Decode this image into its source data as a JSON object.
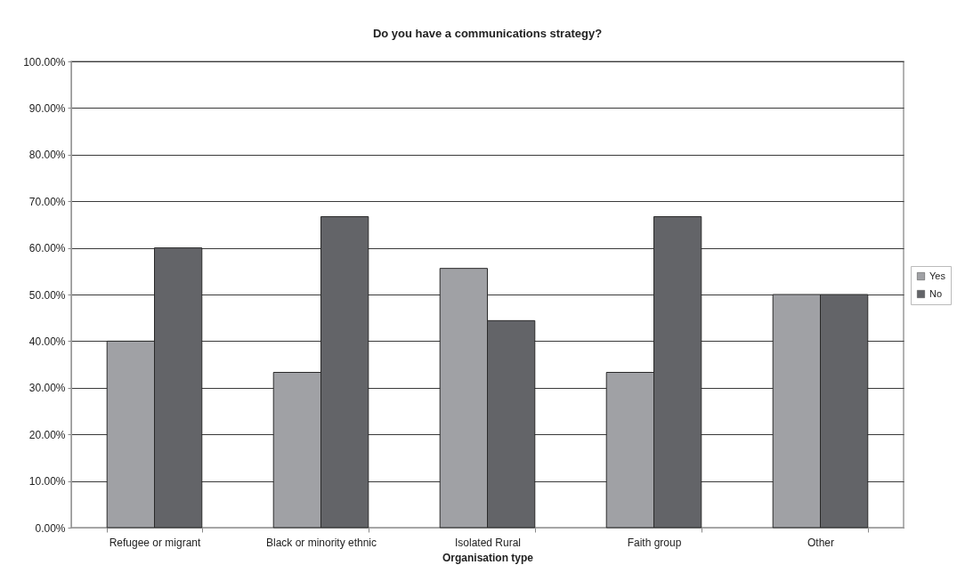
{
  "chart_data": {
    "type": "bar",
    "title": "Do you have a communications strategy?",
    "xlabel": "Organisation type",
    "categories": [
      "Refugee or migrant",
      "Black or minority ethnic",
      "Isolated Rural",
      "Faith group",
      "Other"
    ],
    "series": [
      {
        "name": "Yes",
        "color": "#a0a1a5",
        "values": [
          40.0,
          33.3,
          55.6,
          33.3,
          50.0
        ]
      },
      {
        "name": "No",
        "color": "#636468",
        "values": [
          60.0,
          66.7,
          44.4,
          66.7,
          50.0
        ]
      }
    ],
    "ylim": [
      0,
      100
    ],
    "yticks": [
      {
        "value": 0,
        "label": "0.00%"
      },
      {
        "value": 10,
        "label": "10.00%"
      },
      {
        "value": 20,
        "label": "20.00%"
      },
      {
        "value": 30,
        "label": "30.00%"
      },
      {
        "value": 40,
        "label": "40.00%"
      },
      {
        "value": 50,
        "label": "50.00%"
      },
      {
        "value": 60,
        "label": "60.00%"
      },
      {
        "value": 70,
        "label": "70.00%"
      },
      {
        "value": 80,
        "label": "80.00%"
      },
      {
        "value": 90,
        "label": "90.00%"
      },
      {
        "value": 100,
        "label": "100.00%"
      }
    ],
    "grid": "y",
    "legend": "right"
  }
}
